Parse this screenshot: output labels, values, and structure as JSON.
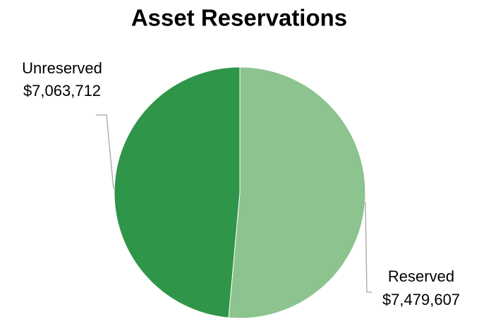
{
  "chart_data": {
    "type": "pie",
    "title": "Asset Reservations",
    "categories": [
      "Reserved",
      "Unreserved"
    ],
    "values": [
      7479607,
      7063712
    ],
    "value_labels": [
      "$7,479,607",
      "$7,063,712"
    ],
    "colors": [
      "#8cc38e",
      "#2f9548"
    ]
  }
}
